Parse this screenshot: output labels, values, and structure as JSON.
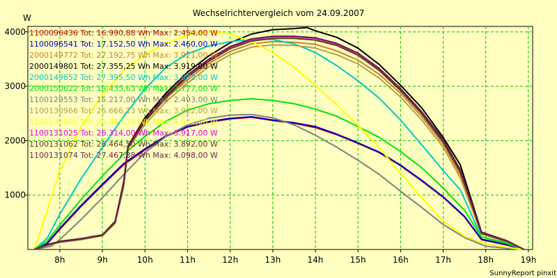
{
  "chart_data": {
    "type": "line",
    "title": "Wechselrichtervergleich vom 24.09.2007",
    "ylabel": "W",
    "xlabel": "",
    "footer": "SunnyReport pinxit",
    "xlim": [
      7.25,
      19.1
    ],
    "ylim": [
      0,
      4100
    ],
    "x_ticks": [
      8,
      9,
      10,
      11,
      12,
      13,
      14,
      15,
      16,
      17,
      18,
      19
    ],
    "x_tick_labels": [
      "8h",
      "9h",
      "10h",
      "11h",
      "12h",
      "13h",
      "14h",
      "15h",
      "16h",
      "17h",
      "18h",
      "19h"
    ],
    "y_ticks": [
      1000,
      2000,
      3000,
      4000
    ],
    "y_tick_labels": [
      "1000",
      "2000",
      "3000",
      "4000"
    ],
    "grid": true,
    "legend_position": "top-left",
    "series": [
      {
        "name": "1100096436 Tot: 16.990,88 Wh Max: 2.454,00 W",
        "color": "#c80000",
        "x": [
          7.4,
          7.7,
          8.0,
          8.5,
          9.0,
          9.5,
          10.0,
          10.5,
          11.0,
          11.5,
          12.0,
          12.5,
          13.0,
          13.5,
          14.0,
          14.5,
          15.0,
          15.5,
          16.0,
          16.5,
          17.0,
          17.5,
          17.9,
          18.5,
          18.9
        ],
        "y": [
          0,
          100,
          370,
          790,
          1180,
          1560,
          1830,
          2080,
          2250,
          2340,
          2400,
          2430,
          2370,
          2320,
          2240,
          2110,
          1950,
          1780,
          1540,
          1260,
          960,
          600,
          180,
          80,
          0
        ]
      },
      {
        "name": "1100096541 Tot: 17.152,50 Wh Max: 2.460,00 W",
        "color": "#0000c8",
        "x": [
          7.4,
          7.7,
          8.0,
          8.5,
          9.0,
          9.5,
          10.0,
          10.5,
          11.0,
          11.5,
          12.0,
          12.5,
          13.0,
          13.5,
          14.0,
          14.5,
          15.0,
          15.5,
          16.0,
          16.5,
          17.0,
          17.5,
          17.9,
          18.5,
          18.9
        ],
        "y": [
          0,
          110,
          390,
          810,
          1200,
          1580,
          1850,
          2090,
          2260,
          2350,
          2410,
          2440,
          2380,
          2330,
          2260,
          2120,
          1960,
          1790,
          1550,
          1270,
          970,
          610,
          190,
          90,
          0
        ]
      },
      {
        "name": "2000149772 Tot: 27.192,75 Wh Max: 3.921,00 W",
        "color": "#c88032",
        "x": [
          7.4,
          7.7,
          8.0,
          8.5,
          9.0,
          9.3,
          9.5,
          9.6,
          10.0,
          10.5,
          11.0,
          11.5,
          12.0,
          12.5,
          13.0,
          13.5,
          14.0,
          14.5,
          15.0,
          15.5,
          16.0,
          16.5,
          17.0,
          17.4,
          17.9,
          18.5,
          18.9
        ],
        "y": [
          0,
          80,
          140,
          190,
          260,
          500,
          1200,
          1880,
          2350,
          2780,
          3120,
          3420,
          3640,
          3780,
          3820,
          3810,
          3770,
          3650,
          3480,
          3220,
          2870,
          2440,
          1940,
          1380,
          300,
          150,
          0
        ]
      },
      {
        "name": "2000149801 Tot: 27.355,25 Wh Max: 3.919,00 W",
        "color": "#000000",
        "x": [
          7.4,
          7.7,
          8.0,
          8.5,
          9.0,
          9.3,
          9.5,
          9.6,
          10.0,
          10.5,
          11.0,
          11.5,
          12.0,
          12.5,
          13.0,
          13.5,
          13.8,
          14.0,
          14.5,
          15.0,
          15.5,
          16.0,
          16.5,
          17.0,
          17.4,
          17.9,
          18.5,
          18.9
        ],
        "y": [
          0,
          90,
          150,
          200,
          270,
          520,
          1250,
          1900,
          2420,
          2880,
          3260,
          3560,
          3800,
          3960,
          4040,
          4060,
          4080,
          4020,
          3900,
          3700,
          3400,
          3020,
          2600,
          2060,
          1560,
          320,
          160,
          0
        ]
      },
      {
        "name": "2000149852 Tot: 27.395,50 Wh Max: 3.982,00 W",
        "color": "#00c8c8",
        "x": [
          7.4,
          7.7,
          8.0,
          8.5,
          9.0,
          9.5,
          10.0,
          10.5,
          11.0,
          11.5,
          12.0,
          12.5,
          13.0,
          13.5,
          14.0,
          14.5,
          15.0,
          15.5,
          16.0,
          16.5,
          17.0,
          17.4,
          17.9,
          18.5,
          18.9
        ],
        "y": [
          0,
          200,
          650,
          1300,
          1880,
          2450,
          2950,
          3350,
          3600,
          3740,
          3820,
          3860,
          3860,
          3780,
          3620,
          3380,
          3100,
          2780,
          2380,
          1920,
          1450,
          1100,
          230,
          120,
          0
        ]
      },
      {
        "name": "2000150622 Tot: 19.435,63 Wh Max: 2.777,00 W",
        "color": "#00e600",
        "x": [
          7.4,
          7.7,
          8.0,
          8.5,
          9.0,
          9.5,
          10.0,
          10.5,
          11.0,
          11.5,
          12.0,
          12.5,
          13.0,
          13.5,
          14.0,
          14.5,
          15.0,
          15.5,
          16.0,
          16.5,
          17.0,
          17.5,
          17.9,
          18.5,
          18.9
        ],
        "y": [
          0,
          150,
          450,
          920,
          1350,
          1750,
          2080,
          2360,
          2560,
          2680,
          2740,
          2770,
          2740,
          2680,
          2580,
          2450,
          2260,
          2060,
          1800,
          1500,
          1130,
          720,
          230,
          110,
          0
        ]
      },
      {
        "name": "1100129553 Tot: 15.217,00 Wh Max: 2.493,00 W",
        "color": "#808080",
        "x": [
          7.4,
          7.8,
          8.0,
          8.5,
          9.0,
          9.5,
          10.0,
          10.5,
          11.0,
          11.5,
          12.0,
          12.5,
          13.0,
          13.5,
          14.0,
          14.5,
          15.0,
          15.5,
          16.0,
          16.5,
          17.0,
          17.5,
          18.0,
          18.5,
          18.9
        ],
        "y": [
          0,
          60,
          180,
          550,
          950,
          1380,
          1780,
          2080,
          2290,
          2410,
          2470,
          2480,
          2420,
          2290,
          2100,
          1880,
          1640,
          1380,
          1070,
          770,
          460,
          220,
          60,
          20,
          0
        ]
      },
      {
        "name": "1100130966 Tot: 25.666,13 Wh Max: 3.922,00 W",
        "color": "#b4a046",
        "x": [
          7.4,
          7.7,
          8.0,
          8.5,
          9.0,
          9.3,
          9.5,
          9.6,
          10.0,
          10.5,
          11.0,
          11.5,
          12.0,
          12.5,
          13.0,
          13.5,
          14.0,
          14.5,
          15.0,
          15.5,
          16.0,
          16.5,
          17.0,
          17.4,
          17.9,
          18.5,
          18.9
        ],
        "y": [
          0,
          70,
          130,
          180,
          250,
          480,
          1150,
          1850,
          2300,
          2720,
          3060,
          3360,
          3580,
          3720,
          3760,
          3750,
          3700,
          3580,
          3410,
          3150,
          2800,
          2380,
          1880,
          1320,
          280,
          140,
          0
        ]
      },
      {
        "name": "1100131005 Tot: 26.983,38 Wh Max: 4.031,00 W",
        "color": "#ffff00",
        "x": [
          7.4,
          7.7,
          8.0,
          8.5,
          9.0,
          9.5,
          10.0,
          10.5,
          11.0,
          11.5,
          12.0,
          12.5,
          13.0,
          13.5,
          14.0,
          14.5,
          15.0,
          15.5,
          16.0,
          16.5,
          17.0,
          17.5,
          18.0,
          18.5,
          18.9
        ],
        "y": [
          0,
          700,
          1450,
          2250,
          2850,
          3280,
          3580,
          3800,
          3940,
          4010,
          3960,
          3820,
          3620,
          3350,
          3020,
          2660,
          2280,
          1870,
          1400,
          950,
          520,
          240,
          100,
          40,
          0
        ]
      },
      {
        "name": "1100131025 Tot: 26.314,00 Wh Max: 3.917,00 W",
        "color": "#e600e6",
        "x": [
          7.4,
          7.7,
          8.0,
          8.5,
          9.0,
          9.3,
          9.5,
          9.6,
          10.0,
          10.5,
          11.0,
          11.5,
          12.0,
          12.5,
          13.0,
          13.5,
          14.0,
          14.5,
          15.0,
          15.5,
          16.0,
          16.5,
          17.0,
          17.4,
          17.9,
          18.5,
          18.9
        ],
        "y": [
          0,
          85,
          145,
          195,
          265,
          510,
          1220,
          1890,
          2380,
          2830,
          3200,
          3490,
          3720,
          3860,
          3910,
          3910,
          3880,
          3780,
          3600,
          3320,
          2950,
          2520,
          2010,
          1460,
          310,
          155,
          0
        ]
      },
      {
        "name": "1100131062 Tot: 26.464,50 Wh Max: 3.892,00 W",
        "color": "#5a3c14",
        "x": [
          7.4,
          7.7,
          8.0,
          8.5,
          9.0,
          9.3,
          9.5,
          9.6,
          10.0,
          10.5,
          11.0,
          11.5,
          12.0,
          12.5,
          13.0,
          13.5,
          14.0,
          14.5,
          15.0,
          15.5,
          16.0,
          16.5,
          17.0,
          17.4,
          17.9,
          18.5,
          18.9
        ],
        "y": [
          0,
          80,
          140,
          190,
          260,
          500,
          1200,
          1870,
          2360,
          2800,
          3170,
          3460,
          3690,
          3830,
          3880,
          3880,
          3850,
          3750,
          3570,
          3290,
          2920,
          2490,
          1980,
          1430,
          300,
          150,
          0
        ]
      },
      {
        "name": "1100131074 Tot: 27.467,38 Wh Max: 4.098,00 W",
        "color": "#6e1e50",
        "x": [
          7.4,
          7.7,
          8.0,
          8.5,
          9.0,
          9.3,
          9.5,
          9.6,
          10.0,
          10.5,
          11.0,
          11.5,
          12.0,
          12.5,
          13.0,
          13.5,
          14.0,
          14.5,
          15.0,
          15.5,
          16.0,
          16.5,
          17.0,
          17.4,
          17.9,
          18.5,
          18.9
        ],
        "y": [
          0,
          88,
          148,
          198,
          268,
          515,
          1230,
          1895,
          2390,
          2840,
          3210,
          3500,
          3730,
          3870,
          3920,
          3920,
          3890,
          3790,
          3610,
          3330,
          2960,
          2530,
          2020,
          1470,
          315,
          158,
          0
        ]
      }
    ]
  }
}
